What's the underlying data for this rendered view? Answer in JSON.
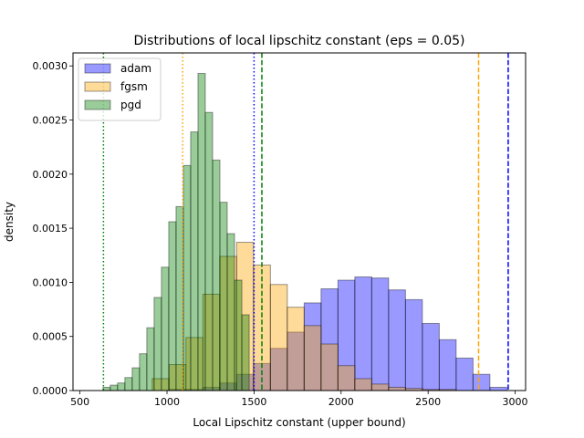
{
  "chart_data": {
    "type": "histogram",
    "title": "Distributions of local lipschitz constant (eps = 0.05)",
    "xlabel": "Local Lipschitz constant (upper bound)",
    "ylabel": "density",
    "xlim": [
      460,
      3060
    ],
    "ylim": [
      0,
      0.00312
    ],
    "xticks": [
      500,
      1000,
      1500,
      2000,
      2500,
      3000
    ],
    "xtick_labels": [
      "500",
      "1000",
      "1500",
      "2000",
      "2500",
      "3000"
    ],
    "yticks": [
      0,
      0.0005,
      0.001,
      0.0015,
      0.002,
      0.0025,
      0.003
    ],
    "ytick_labels": [
      "0.0000",
      "0.0005",
      "0.0010",
      "0.0015",
      "0.0020",
      "0.0025",
      "0.0030"
    ],
    "grid": false,
    "legend_position": "top-left",
    "series": [
      {
        "name": "adam",
        "color": "#0000ff",
        "alpha": 0.4,
        "bin_width": 97,
        "bins": [
          [
            915,
            0
          ],
          [
            1012,
            1e-05
          ],
          [
            1109,
            1e-05
          ],
          [
            1206,
            3e-05
          ],
          [
            1303,
            7e-05
          ],
          [
            1400,
            0.00015
          ],
          [
            1497,
            0.00025
          ],
          [
            1594,
            0.00039
          ],
          [
            1691,
            0.00054
          ],
          [
            1788,
            0.00081
          ],
          [
            1885,
            0.00094
          ],
          [
            1982,
            0.00102
          ],
          [
            2079,
            0.00105
          ],
          [
            2176,
            0.00104
          ],
          [
            2273,
            0.00093
          ],
          [
            2370,
            0.00084
          ],
          [
            2467,
            0.00062
          ],
          [
            2564,
            0.00047
          ],
          [
            2661,
            0.0003
          ],
          [
            2758,
            0.00015
          ],
          [
            2855,
            3e-05
          ]
        ]
      },
      {
        "name": "fgsm",
        "color": "#ffa500",
        "alpha": 0.4,
        "bin_width": 97,
        "bins": [
          [
            915,
            0.00011
          ],
          [
            1012,
            0.00024
          ],
          [
            1109,
            0.00049
          ],
          [
            1206,
            0.00089
          ],
          [
            1303,
            0.00124
          ],
          [
            1400,
            0.00137
          ],
          [
            1497,
            0.00116
          ],
          [
            1594,
            0.00098
          ],
          [
            1691,
            0.00077
          ],
          [
            1788,
            0.0006
          ],
          [
            1885,
            0.00043
          ],
          [
            1982,
            0.00023
          ],
          [
            2079,
            0.00011
          ],
          [
            2176,
            6e-05
          ],
          [
            2273,
            3e-05
          ],
          [
            2370,
            2e-05
          ],
          [
            2467,
            1e-05
          ],
          [
            2564,
            1e-05
          ],
          [
            2661,
            0
          ]
        ]
      },
      {
        "name": "pgd",
        "color": "#008000",
        "alpha": 0.4,
        "bin_width": 42,
        "bins": [
          [
            632,
            3e-05
          ],
          [
            674,
            5e-05
          ],
          [
            716,
            7e-05
          ],
          [
            758,
            0.00012
          ],
          [
            800,
            0.00021
          ],
          [
            842,
            0.00034
          ],
          [
            884,
            0.00058
          ],
          [
            926,
            0.00086
          ],
          [
            968,
            0.00114
          ],
          [
            1010,
            0.00156
          ],
          [
            1052,
            0.0017
          ],
          [
            1094,
            0.00208
          ],
          [
            1136,
            0.00239
          ],
          [
            1178,
            0.00293
          ],
          [
            1220,
            0.00257
          ],
          [
            1262,
            0.00213
          ],
          [
            1304,
            0.00174
          ],
          [
            1346,
            0.00145
          ],
          [
            1388,
            0.00102
          ],
          [
            1430,
            0.0007
          ]
        ]
      }
    ],
    "vlines": [
      {
        "x": 635,
        "color": "#008000",
        "style": "dotted"
      },
      {
        "x": 1090,
        "color": "#ffa500",
        "style": "dotted"
      },
      {
        "x": 1500,
        "color": "#0000ff",
        "style": "dotted"
      },
      {
        "x": 1545,
        "color": "#008000",
        "style": "dashed"
      },
      {
        "x": 2790,
        "color": "#ffa500",
        "style": "dashed"
      },
      {
        "x": 2960,
        "color": "#0000ff",
        "style": "dashed"
      }
    ]
  }
}
